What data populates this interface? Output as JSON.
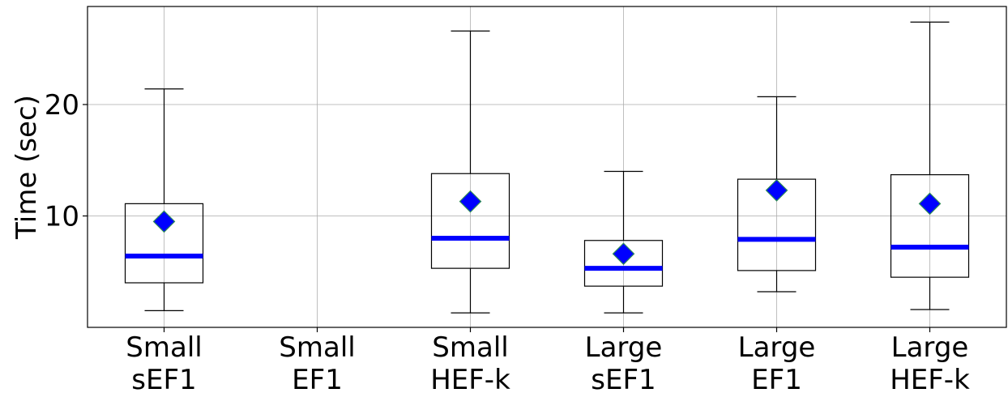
{
  "chart_data": {
    "type": "box",
    "title": "",
    "xlabel": "",
    "ylabel": "Time (sec)",
    "ylim": [
      0,
      28.8
    ],
    "yticks": [
      10,
      20
    ],
    "grid": true,
    "categories": [
      {
        "line1": "Small",
        "line2": "sEF1"
      },
      {
        "line1": "Small",
        "line2": "EF1"
      },
      {
        "line1": "Small",
        "line2": "HEF-k"
      },
      {
        "line1": "Large",
        "line2": "sEF1"
      },
      {
        "line1": "Large",
        "line2": "EF1"
      },
      {
        "line1": "Large",
        "line2": "HEF-k"
      }
    ],
    "boxes": [
      {
        "whisker_low": 1.5,
        "q1": 4.0,
        "median": 6.4,
        "q3": 11.1,
        "whisker_high": 21.4,
        "mean": 9.5
      },
      null,
      {
        "whisker_low": 1.3,
        "q1": 5.3,
        "median": 8.0,
        "q3": 13.8,
        "whisker_high": 26.6,
        "mean": 11.3
      },
      {
        "whisker_low": 1.3,
        "q1": 3.7,
        "median": 5.3,
        "q3": 7.8,
        "whisker_high": 14.0,
        "mean": 6.6
      },
      {
        "whisker_low": 3.2,
        "q1": 5.1,
        "median": 7.9,
        "q3": 13.3,
        "whisker_high": 20.7,
        "mean": 12.3
      },
      {
        "whisker_low": 1.6,
        "q1": 4.5,
        "median": 7.2,
        "q3": 13.7,
        "whisker_high": 27.4,
        "mean": 11.1
      }
    ],
    "colors": {
      "median": "#0000ff",
      "mean_fill": "#0000ff",
      "mean_edge": "#2e8b57",
      "box_edge": "#000000",
      "grid": "#b0b0b0"
    }
  }
}
